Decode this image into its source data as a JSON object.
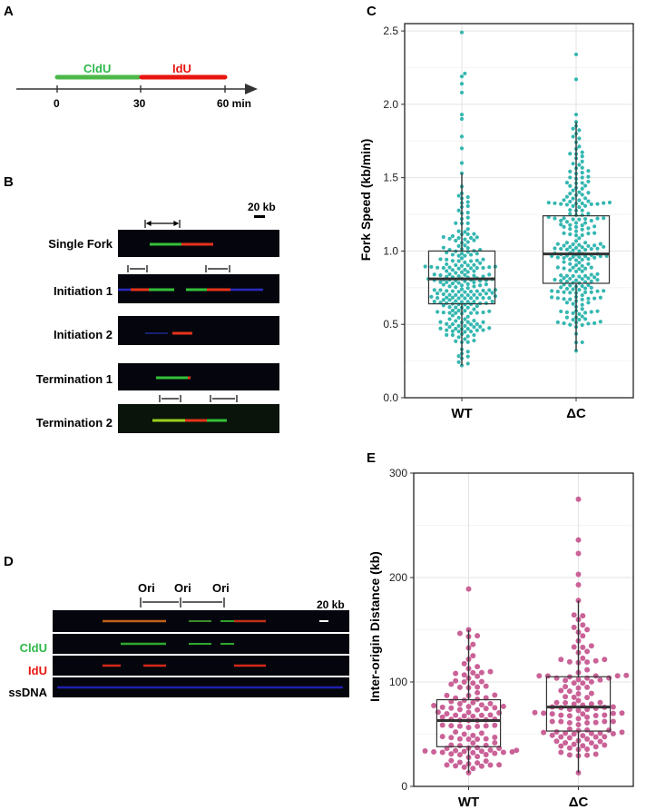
{
  "panels": {
    "A": {
      "letter": "A",
      "timeline": {
        "labels": [
          "CldU",
          "IdU"
        ],
        "label_colors": [
          "#2eb84a",
          "#e8140f"
        ],
        "ticks": [
          "0",
          "30",
          "60 min"
        ]
      }
    },
    "B": {
      "letter": "B",
      "scale_bar": "20 kb",
      "rows": [
        {
          "label": "Single Fork"
        },
        {
          "label": "Initiation 1"
        },
        {
          "label": "Initiation 2"
        },
        {
          "label": "Termination 1"
        },
        {
          "label": "Termination 2"
        }
      ]
    },
    "C": {
      "letter": "C"
    },
    "D": {
      "letter": "D",
      "ori_labels": [
        "Ori",
        "Ori",
        "Ori"
      ],
      "scale_bar": "20 kb",
      "channels": [
        {
          "label": "",
          "color": ""
        },
        {
          "label": "CldU",
          "color": "#2eb84a"
        },
        {
          "label": "IdU",
          "color": "#e8140f"
        },
        {
          "label": "ssDNA",
          "color": "#000000"
        }
      ]
    },
    "E": {
      "letter": "E"
    }
  },
  "chart_data": [
    {
      "panel": "C",
      "type": "scatter",
      "subtype": "boxplot-with-beeswarm",
      "title": "",
      "xlabel": "",
      "ylabel": "Fork Speed (kb/min)",
      "categories": [
        "WT",
        "ΔC"
      ],
      "ylim": [
        0,
        2.55
      ],
      "yticks": [
        "0.0",
        "0.5",
        "1.0",
        "1.5",
        "2.0",
        "2.5"
      ],
      "grid": true,
      "point_color": "#2ab3ad",
      "boxes": [
        {
          "category": "WT",
          "min": 0.22,
          "q1": 0.64,
          "median": 0.81,
          "q3": 1.0,
          "max": 1.53
        },
        {
          "category": "ΔC",
          "min": 0.32,
          "q1": 0.78,
          "median": 0.98,
          "q3": 1.24,
          "max": 1.88
        }
      ],
      "outliers": {
        "WT": [
          1.6,
          1.7,
          1.78,
          1.9,
          1.93,
          2.08,
          2.14,
          2.19,
          2.21,
          2.49
        ],
        "ΔC": [
          1.93,
          2.17,
          2.34
        ]
      }
    },
    {
      "panel": "E",
      "type": "scatter",
      "subtype": "boxplot-with-beeswarm",
      "title": "",
      "xlabel": "",
      "ylabel": "Inter-origin Distance (kb)",
      "categories": [
        "WT",
        "ΔC"
      ],
      "ylim": [
        0,
        300
      ],
      "yticks": [
        "0",
        "100",
        "200",
        "300"
      ],
      "grid": true,
      "point_color": "#c75a92",
      "boxes": [
        {
          "category": "WT",
          "min": 13,
          "q1": 38,
          "median": 63,
          "q3": 83,
          "max": 150
        },
        {
          "category": "ΔC",
          "min": 13,
          "q1": 53,
          "median": 76,
          "q3": 105,
          "max": 178
        }
      ],
      "outliers": {
        "WT": [
          189
        ],
        "ΔC": [
          193,
          203,
          223,
          236,
          275
        ]
      }
    }
  ]
}
